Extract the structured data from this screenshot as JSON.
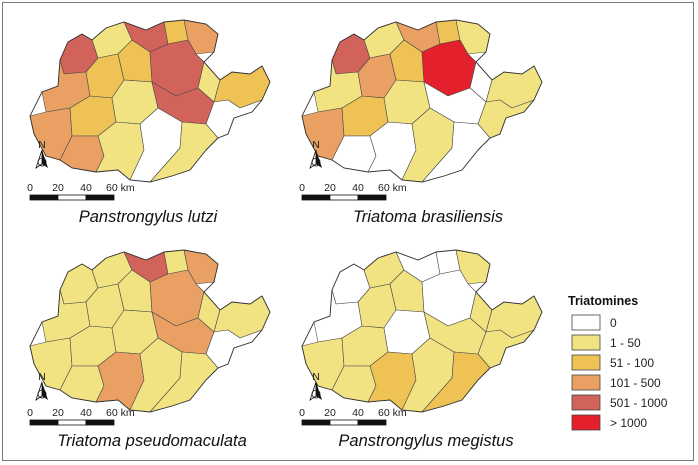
{
  "colors": {
    "c0": "#ffffff",
    "c1": "#f2e382",
    "c2": "#eec254",
    "c3": "#e9a062",
    "c4": "#d1635a",
    "c5": "#e3202b"
  },
  "maps": [
    {
      "title": "Panstrongylus lutzi",
      "scale": {
        "labels": [
          "0",
          "20",
          "40",
          "60 km"
        ]
      },
      "north_label": "N"
    },
    {
      "title": "Triatoma brasiliensis",
      "scale": {
        "labels": [
          "0",
          "20",
          "40",
          "60 km"
        ]
      },
      "north_label": "N"
    },
    {
      "title": "Triatoma pseudomaculata",
      "scale": {
        "labels": [
          "0",
          "20",
          "40",
          "60 km"
        ]
      },
      "north_label": "N"
    },
    {
      "title": "Panstrongylus megistus",
      "scale": {
        "labels": [
          "0",
          "20",
          "40",
          "60 km"
        ]
      },
      "north_label": "N"
    }
  ],
  "legend": {
    "title": "Triatomines",
    "classes": [
      {
        "label": "0",
        "color": "#ffffff"
      },
      {
        "label": "1 - 50",
        "color": "#f2e382"
      },
      {
        "label": "51 - 100",
        "color": "#eec254"
      },
      {
        "label": "101 - 500",
        "color": "#e9a062"
      },
      {
        "label": "501 - 1000",
        "color": "#d1635a"
      },
      {
        "label": "> 1000",
        "color": "#e3202b"
      }
    ]
  }
}
